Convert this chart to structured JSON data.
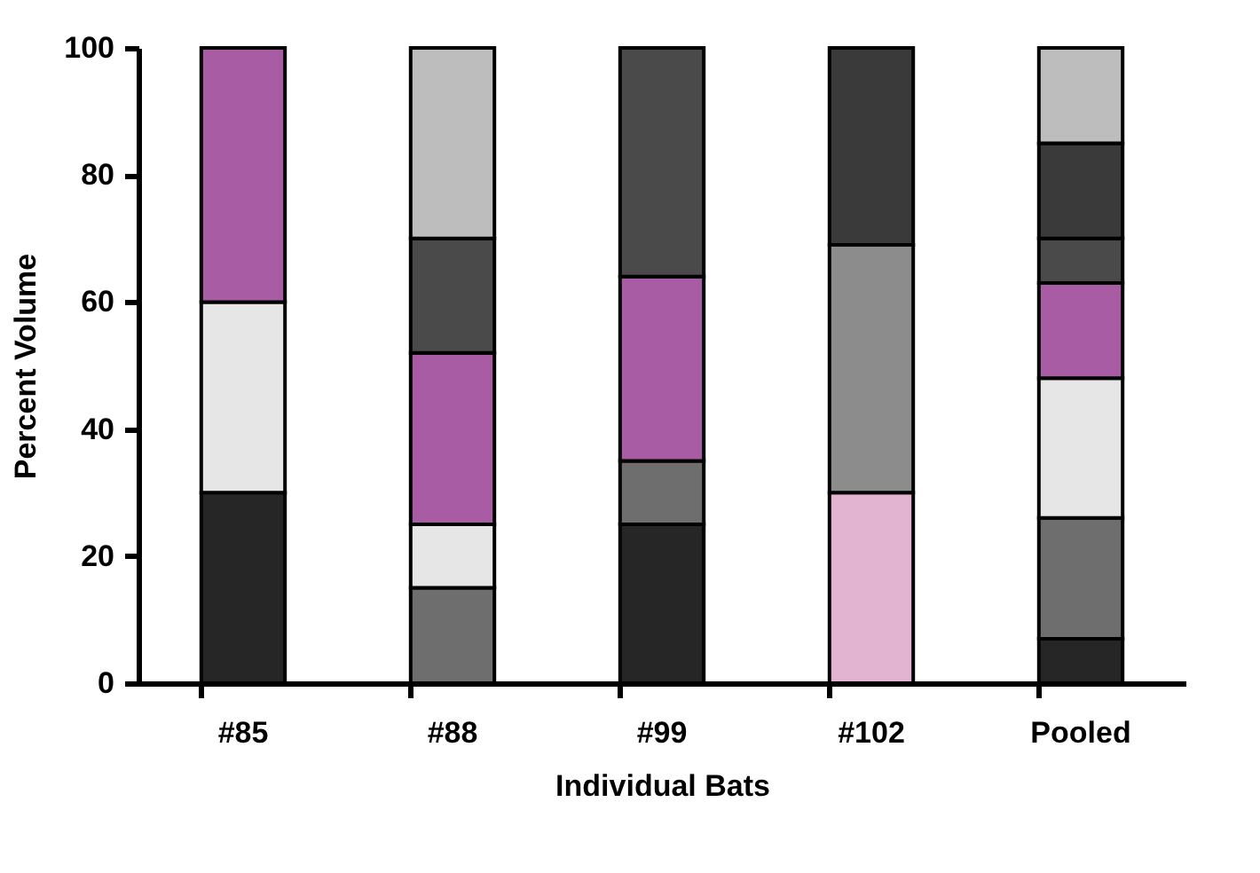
{
  "chart_data": {
    "type": "bar",
    "stacked": true,
    "xlabel": "Individual Bats",
    "ylabel": "Percent Volume",
    "categories": [
      "#85",
      "#88",
      "#99",
      "#102",
      "Pooled"
    ],
    "ylim": [
      0,
      100
    ],
    "yticks": [
      0,
      20,
      40,
      60,
      80,
      100
    ],
    "grid": false,
    "legend": false,
    "series": [
      {
        "color": "#262626",
        "values": [
          30,
          null,
          25,
          null,
          7
        ]
      },
      {
        "color": "#6e6e6e",
        "values": [
          null,
          15,
          10,
          null,
          19
        ]
      },
      {
        "color": "#e6e6e6",
        "values": [
          30,
          10,
          null,
          null,
          22
        ]
      },
      {
        "color": "#e3b4d2",
        "values": [
          null,
          null,
          null,
          30,
          null
        ]
      },
      {
        "color": "#a75ca3",
        "values": [
          40,
          27,
          29,
          null,
          15
        ]
      },
      {
        "color": "#8c8c8c",
        "values": [
          null,
          null,
          null,
          39,
          null
        ]
      },
      {
        "color": "#4a4a4a",
        "values": [
          null,
          18,
          36,
          null,
          7
        ]
      },
      {
        "color": "#3a3a3a",
        "values": [
          null,
          null,
          null,
          31,
          15
        ]
      },
      {
        "color": "#bdbdbd",
        "values": [
          null,
          30,
          null,
          null,
          15
        ]
      }
    ]
  }
}
